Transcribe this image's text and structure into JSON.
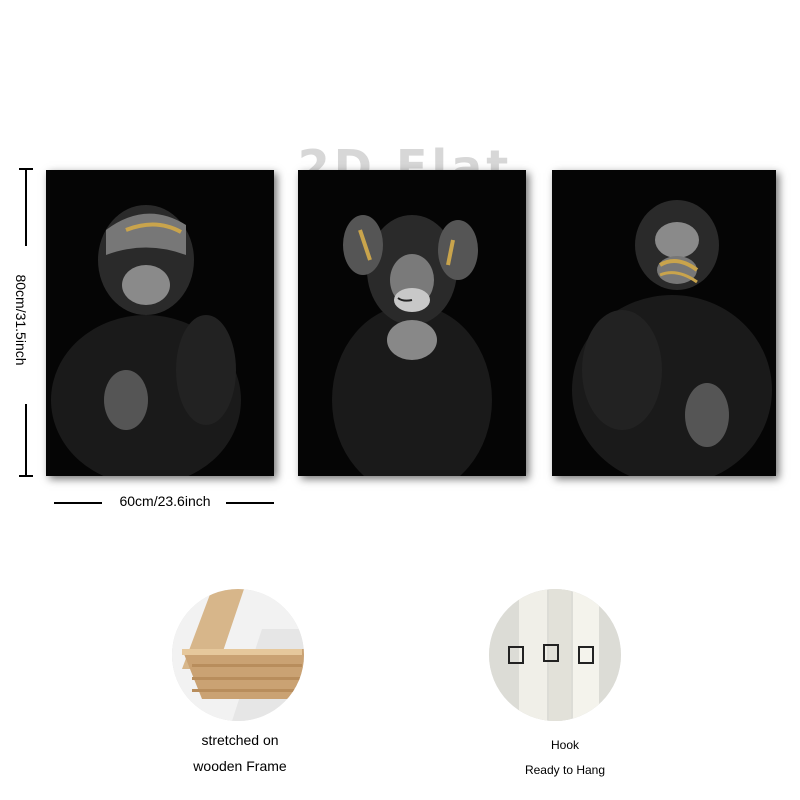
{
  "watermark": "2D Flat",
  "dimensions": {
    "height_label": "80cm/31.5inch",
    "width_label": "60cm/23.6inch"
  },
  "panels": [
    {
      "subject": "chimp-covering-eyes"
    },
    {
      "subject": "chimp-covering-ears"
    },
    {
      "subject": "chimp-covering-mouth"
    }
  ],
  "details": {
    "frame_caption_line1": "stretched on",
    "frame_caption_line2": "wooden Frame",
    "hook_caption_line1": "Hook",
    "hook_caption_line2": "Ready to Hang"
  },
  "colors": {
    "panel_bg": "#050505",
    "gold_accent": "#c9a44c",
    "wood": "#d7b68a"
  }
}
